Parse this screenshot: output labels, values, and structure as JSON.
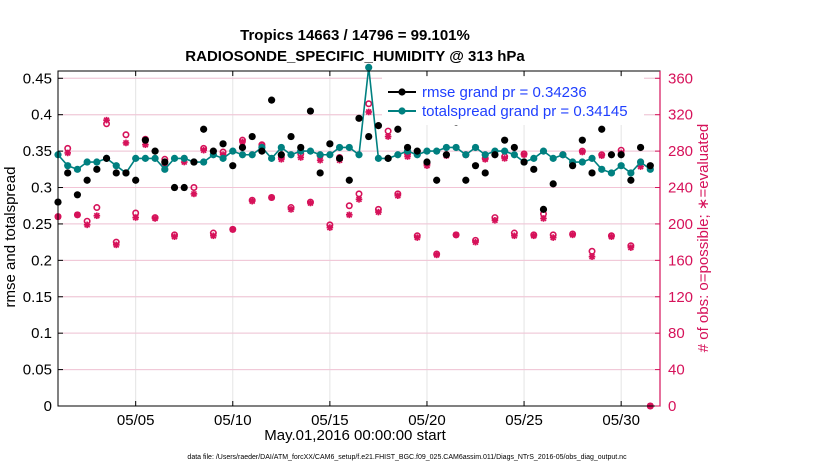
{
  "chart_data": {
    "type": "line",
    "title_line1": "Tropics 14663 / 14796 = 99.101%",
    "title_line2": "RADIOSONDE_SPECIFIC_HUMIDITY @ 313 hPa",
    "xlabel": "May.01,2016 00:00:00 start",
    "ylabel_left": "rmse and totalspread",
    "ylabel_right": "# of obs: o=possible; ∗=evaluated",
    "footer": "data file: /Users/raeder/DAI/ATM_forcXX/CAM6_setup/f.e21.FHIST_BGC.f09_025.CAM6assim.011/Diags_NTrS_2016-05/obs_diag_output.nc",
    "xlim": [
      1.0,
      32.0
    ],
    "ylim_left": [
      0,
      0.46
    ],
    "ylim_right": [
      0,
      368
    ],
    "x_ticks": [
      5,
      10,
      15,
      20,
      25,
      30
    ],
    "x_tick_labels": [
      "05/05",
      "05/10",
      "05/15",
      "05/20",
      "05/25",
      "05/30"
    ],
    "y_left_ticks": [
      0,
      0.05,
      0.1,
      0.15,
      0.2,
      0.25,
      0.3,
      0.35,
      0.4,
      0.45
    ],
    "y_left_tick_labels": [
      "0",
      "0.05",
      "0.1",
      "0.15",
      "0.2",
      "0.25",
      "0.3",
      "0.35",
      "0.4",
      "0.45"
    ],
    "y_right_ticks": [
      0,
      40,
      80,
      120,
      160,
      200,
      240,
      280,
      320,
      360
    ],
    "y_right_tick_labels": [
      "0",
      "40",
      "80",
      "120",
      "160",
      "200",
      "240",
      "280",
      "320",
      "360"
    ],
    "legend": [
      "rmse grand pr = 0.34236",
      "totalspread grand pr = 0.34145"
    ],
    "colors": {
      "rmse": "#000000",
      "spread": "#008080",
      "obs": "#d6125a"
    },
    "series": [
      {
        "name": "rmse grand pr = 0.34236",
        "x": [
          1.0,
          1.5,
          2.0,
          2.5,
          3.0,
          3.5,
          4.0,
          4.5,
          5.0,
          5.5,
          6.0,
          6.5,
          7.0,
          7.5,
          8.0,
          8.5,
          9.0,
          9.5,
          10.0,
          10.5,
          11.0,
          11.5,
          12.0,
          12.5,
          13.0,
          13.5,
          14.0,
          14.5,
          15.0,
          15.5,
          16.0,
          16.5,
          17.0,
          17.5,
          18.0,
          18.5,
          19.0,
          19.5,
          20.0,
          20.5,
          21.0,
          21.5,
          22.0,
          22.5,
          23.0,
          23.5,
          24.0,
          24.5,
          25.0,
          25.5,
          26.0,
          26.5,
          27.0,
          27.5,
          28.0,
          28.5,
          29.0,
          29.5,
          30.0,
          30.5,
          31.0,
          31.5
        ],
        "values": [
          0.28,
          0.32,
          0.29,
          0.31,
          0.325,
          0.34,
          0.32,
          0.32,
          0.31,
          0.365,
          0.35,
          0.335,
          0.3,
          0.3,
          0.335,
          0.38,
          0.35,
          0.36,
          0.33,
          0.355,
          0.37,
          0.35,
          0.42,
          0.345,
          0.37,
          0.355,
          0.405,
          0.32,
          0.36,
          0.34,
          0.31,
          0.395,
          0.37,
          0.385,
          0.34,
          0.38,
          0.355,
          0.35,
          0.335,
          0.31,
          0.345,
          0.39,
          0.31,
          0.33,
          0.32,
          0.345,
          0.365,
          0.355,
          0.335,
          0.325,
          0.27,
          0.305,
          0.395,
          0.33,
          0.365,
          0.32,
          0.38,
          0.345,
          0.345,
          0.31,
          0.355,
          0.33
        ]
      },
      {
        "name": "totalspread grand pr = 0.34145",
        "x": [
          1.0,
          1.5,
          2.0,
          2.5,
          3.0,
          3.5,
          4.0,
          4.5,
          5.0,
          5.5,
          6.0,
          6.5,
          7.0,
          7.5,
          8.0,
          8.5,
          9.0,
          9.5,
          10.0,
          10.5,
          11.0,
          11.5,
          12.0,
          12.5,
          13.0,
          13.5,
          14.0,
          14.5,
          15.0,
          15.5,
          16.0,
          16.5,
          17.0,
          17.5,
          18.0,
          18.5,
          19.0,
          19.5,
          20.0,
          20.5,
          21.0,
          21.5,
          22.0,
          22.5,
          23.0,
          23.5,
          24.0,
          24.5,
          25.0,
          25.5,
          26.0,
          26.5,
          27.0,
          27.5,
          28.0,
          28.5,
          29.0,
          29.5,
          30.0,
          30.5,
          31.0,
          31.5
        ],
        "values": [
          0.345,
          0.33,
          0.325,
          0.335,
          0.335,
          0.34,
          0.33,
          0.32,
          0.34,
          0.34,
          0.34,
          0.325,
          0.34,
          0.34,
          0.335,
          0.335,
          0.345,
          0.34,
          0.35,
          0.345,
          0.345,
          0.355,
          0.34,
          0.355,
          0.345,
          0.35,
          0.35,
          0.345,
          0.345,
          0.355,
          0.355,
          0.345,
          0.465,
          0.34,
          0.34,
          0.345,
          0.35,
          0.345,
          0.35,
          0.35,
          0.355,
          0.355,
          0.345,
          0.355,
          0.345,
          0.35,
          0.35,
          0.345,
          0.335,
          0.34,
          0.35,
          0.34,
          0.345,
          0.335,
          0.335,
          0.34,
          0.325,
          0.32,
          0.33,
          0.32,
          0.335,
          0.325
        ]
      },
      {
        "name": "# of obs possible",
        "x": [
          1.0,
          1.5,
          2.0,
          2.5,
          3.0,
          3.5,
          4.0,
          4.5,
          5.0,
          5.5,
          6.0,
          6.5,
          7.0,
          7.5,
          8.0,
          8.5,
          9.0,
          9.5,
          10.0,
          10.5,
          11.0,
          11.5,
          12.0,
          12.5,
          13.0,
          13.5,
          14.0,
          14.5,
          15.0,
          15.5,
          16.0,
          16.5,
          17.0,
          17.5,
          18.0,
          18.5,
          19.0,
          19.5,
          20.0,
          20.5,
          21.0,
          21.5,
          22.0,
          22.5,
          23.0,
          23.5,
          24.0,
          24.5,
          25.0,
          25.5,
          26.0,
          26.5,
          27.0,
          27.5,
          28.0,
          28.5,
          29.0,
          29.5,
          30.0,
          30.5,
          31.0,
          31.5
        ],
        "values": [
          208,
          283,
          210,
          203,
          218,
          310,
          180,
          298,
          212,
          293,
          207,
          271,
          188,
          272,
          240,
          283,
          190,
          279,
          194,
          292,
          226,
          287,
          229,
          273,
          218,
          277,
          224,
          275,
          199,
          273,
          220,
          233,
          332,
          216,
          302,
          233,
          277,
          187,
          266,
          167,
          276,
          188,
          276,
          182,
          272,
          207,
          274,
          190,
          277,
          188,
          211,
          188,
          276,
          189,
          280,
          170,
          276,
          187,
          281,
          176,
          268,
          0
        ]
      },
      {
        "name": "# of obs evaluated",
        "x": [
          1.0,
          1.5,
          2.0,
          2.5,
          3.0,
          3.5,
          4.0,
          4.5,
          5.0,
          5.5,
          6.0,
          6.5,
          7.0,
          7.5,
          8.0,
          8.5,
          9.0,
          9.5,
          10.0,
          10.5,
          11.0,
          11.5,
          12.0,
          12.5,
          13.0,
          13.5,
          14.0,
          14.5,
          15.0,
          15.5,
          16.0,
          16.5,
          17.0,
          17.5,
          18.0,
          18.5,
          19.0,
          19.5,
          20.0,
          20.5,
          21.0,
          21.5,
          22.0,
          22.5,
          23.0,
          23.5,
          24.0,
          24.5,
          25.0,
          25.5,
          26.0,
          26.5,
          27.0,
          27.5,
          28.0,
          28.5,
          29.0,
          29.5,
          30.0,
          30.5,
          31.0,
          31.5
        ],
        "values": [
          208,
          278,
          210,
          199,
          209,
          314,
          177,
          289,
          207,
          287,
          206,
          266,
          186,
          268,
          233,
          281,
          187,
          276,
          194,
          290,
          225,
          286,
          229,
          271,
          216,
          273,
          223,
          270,
          196,
          270,
          210,
          227,
          323,
          213,
          296,
          231,
          274,
          185,
          264,
          166,
          275,
          188,
          276,
          180,
          271,
          204,
          272,
          187,
          276,
          187,
          206,
          185,
          276,
          188,
          279,
          164,
          275,
          186,
          278,
          174,
          263,
          0
        ]
      }
    ]
  }
}
